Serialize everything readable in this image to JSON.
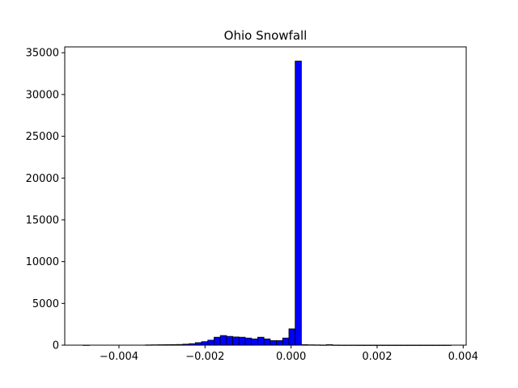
{
  "chart_data": {
    "type": "bar",
    "title": "Ohio Snowfall",
    "xlabel": "",
    "ylabel": "",
    "bin_width": 0.000145,
    "bins": [
      {
        "x0": -0.004835,
        "count": 10
      },
      {
        "x0": -0.00469,
        "count": 0
      },
      {
        "x0": -0.004545,
        "count": 0
      },
      {
        "x0": -0.0044,
        "count": 0
      },
      {
        "x0": -0.004255,
        "count": 0
      },
      {
        "x0": -0.00411,
        "count": 0
      },
      {
        "x0": -0.003965,
        "count": 0
      },
      {
        "x0": -0.00382,
        "count": 0
      },
      {
        "x0": -0.003675,
        "count": 0
      },
      {
        "x0": -0.00353,
        "count": 0
      },
      {
        "x0": -0.003385,
        "count": 30
      },
      {
        "x0": -0.00324,
        "count": 40
      },
      {
        "x0": -0.003095,
        "count": 50
      },
      {
        "x0": -0.00295,
        "count": 60
      },
      {
        "x0": -0.002805,
        "count": 70
      },
      {
        "x0": -0.00266,
        "count": 80
      },
      {
        "x0": -0.002515,
        "count": 120
      },
      {
        "x0": -0.00237,
        "count": 180
      },
      {
        "x0": -0.002225,
        "count": 300
      },
      {
        "x0": -0.00208,
        "count": 420
      },
      {
        "x0": -0.001935,
        "count": 600
      },
      {
        "x0": -0.00179,
        "count": 950
      },
      {
        "x0": -0.001645,
        "count": 1150
      },
      {
        "x0": -0.0015,
        "count": 1050
      },
      {
        "x0": -0.001355,
        "count": 980
      },
      {
        "x0": -0.00121,
        "count": 950
      },
      {
        "x0": -0.001065,
        "count": 850
      },
      {
        "x0": -0.00092,
        "count": 750
      },
      {
        "x0": -0.000775,
        "count": 950
      },
      {
        "x0": -0.00063,
        "count": 750
      },
      {
        "x0": -0.000485,
        "count": 550
      },
      {
        "x0": -0.00034,
        "count": 550
      },
      {
        "x0": -0.000195,
        "count": 850
      },
      {
        "x0": -5e-05,
        "count": 1950
      },
      {
        "x0": 9.5e-05,
        "count": 34000
      },
      {
        "x0": 0.00024,
        "count": 60
      },
      {
        "x0": 0.000385,
        "count": 40
      },
      {
        "x0": 0.00053,
        "count": 30
      },
      {
        "x0": 0.000675,
        "count": 20
      },
      {
        "x0": 0.00082,
        "count": 60
      },
      {
        "x0": 0.000965,
        "count": 15
      },
      {
        "x0": 0.00111,
        "count": 10
      },
      {
        "x0": 0.001255,
        "count": 10
      },
      {
        "x0": 0.0014,
        "count": 10
      },
      {
        "x0": 0.001545,
        "count": 5
      },
      {
        "x0": 0.00169,
        "count": 5
      },
      {
        "x0": 0.001835,
        "count": 5
      },
      {
        "x0": 0.00198,
        "count": 5
      },
      {
        "x0": 0.002125,
        "count": 5
      },
      {
        "x0": 0.00227,
        "count": 5
      },
      {
        "x0": 0.002415,
        "count": 5
      },
      {
        "x0": 0.00256,
        "count": 5
      },
      {
        "x0": 0.002705,
        "count": 5
      },
      {
        "x0": 0.00285,
        "count": 5
      },
      {
        "x0": 0.002995,
        "count": 5
      },
      {
        "x0": 0.00314,
        "count": 5
      },
      {
        "x0": 0.003285,
        "count": 5
      },
      {
        "x0": 0.00343,
        "count": 5
      },
      {
        "x0": 0.003575,
        "count": 5
      }
    ],
    "xlim": [
      -0.00526,
      0.00407
    ],
    "ylim": [
      0,
      35700
    ],
    "xticks": [
      {
        "value": -0.004,
        "label": "−0.004"
      },
      {
        "value": -0.002,
        "label": "−0.002"
      },
      {
        "value": 0.0,
        "label": "0.000"
      },
      {
        "value": 0.002,
        "label": "0.002"
      },
      {
        "value": 0.004,
        "label": "0.004"
      }
    ],
    "yticks": [
      {
        "value": 0,
        "label": "0"
      },
      {
        "value": 5000,
        "label": "5000"
      },
      {
        "value": 10000,
        "label": "10000"
      },
      {
        "value": 15000,
        "label": "15000"
      },
      {
        "value": 20000,
        "label": "20000"
      },
      {
        "value": 25000,
        "label": "25000"
      },
      {
        "value": 30000,
        "label": "30000"
      },
      {
        "value": 35000,
        "label": "35000"
      }
    ],
    "colors": {
      "bar_fill": "#0000ff",
      "bar_edge": "#000000",
      "axes": "#000000"
    },
    "grid": false,
    "legend": "none"
  }
}
